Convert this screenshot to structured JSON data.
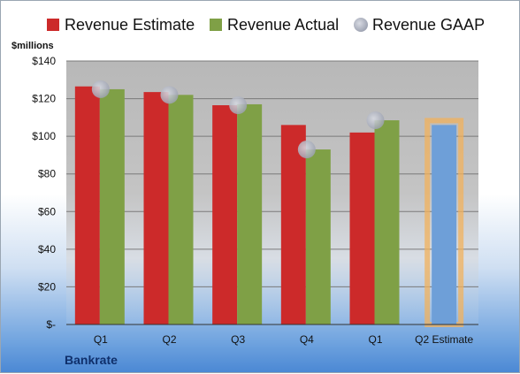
{
  "chart_data": {
    "type": "bar",
    "company": "Bankrate",
    "unit_label": "$millions",
    "categories": [
      "Q1",
      "Q2",
      "Q3",
      "Q4",
      "Q1",
      "Q2 Estimate"
    ],
    "series": [
      {
        "name": "Revenue Estimate",
        "color": "#cc2a2a",
        "values": [
          126.5,
          123.5,
          116.5,
          106,
          102,
          null
        ]
      },
      {
        "name": "Revenue Actual",
        "color": "#7fa046",
        "values": [
          125,
          122,
          117,
          93,
          108.5,
          null
        ]
      },
      {
        "name": "Revenue GAAP",
        "color": "#b8bcc8",
        "values": [
          125,
          122,
          116.5,
          93,
          108.5,
          null
        ]
      }
    ],
    "projection": {
      "category": "Q2 Estimate",
      "value": 106,
      "color": "#6e9fd8",
      "glow": "#f2b25c"
    },
    "ylim": [
      0,
      140
    ],
    "yticks": [
      0,
      20,
      40,
      60,
      80,
      100,
      120,
      140
    ],
    "ytick_labels": [
      "$-",
      "$20",
      "$40",
      "$60",
      "$80",
      "$100",
      "$120",
      "$140"
    ],
    "grid": true,
    "legend_position": "top"
  }
}
